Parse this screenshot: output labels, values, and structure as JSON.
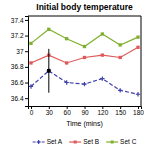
{
  "chart_data": {
    "type": "line",
    "title": "Initial body temperature",
    "xlabel": "Time (mins)",
    "x": [
      0,
      30,
      60,
      90,
      120,
      150,
      180
    ],
    "xlim": [
      -5,
      185
    ],
    "xticks": [
      0,
      30,
      60,
      90,
      120,
      150,
      180
    ],
    "ylim": [
      36.3,
      37.45
    ],
    "yticks": [
      36.4,
      36.6,
      36.8,
      37,
      37.2,
      37.4
    ],
    "series": [
      {
        "name": "Set A",
        "color": "#4040aa",
        "line_style": "dashed",
        "marker": "plus",
        "values": [
          36.55,
          36.75,
          36.6,
          36.58,
          36.65,
          36.5,
          36.45
        ]
      },
      {
        "name": "Set B",
        "color": "#e05858",
        "line_style": "solid",
        "marker": "square",
        "values": [
          36.85,
          36.95,
          36.85,
          36.92,
          36.95,
          36.92,
          37.05
        ]
      },
      {
        "name": "Set C",
        "color": "#80b030",
        "line_style": "solid",
        "marker": "square",
        "values": [
          37.1,
          37.28,
          37.16,
          37.06,
          37.22,
          37.08,
          37.18
        ]
      }
    ],
    "error_bar": {
      "x": 30,
      "value": 36.75,
      "error": 0.28,
      "color": "#000000",
      "marker": "square"
    }
  }
}
